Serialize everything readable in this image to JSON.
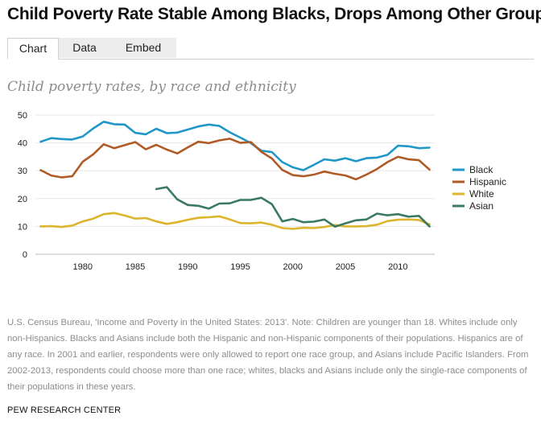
{
  "headline": "Child Poverty Rate Stable Among Blacks, Drops Among Other Groups",
  "tabs": [
    {
      "label": "Chart",
      "active": true
    },
    {
      "label": "Data",
      "active": false
    },
    {
      "label": "Embed",
      "active": false
    }
  ],
  "source_note": "U.S. Census Bureau, 'Income and Poverty in the United States: 2013'. Note: Children are younger than 18. Whites include only non-Hispanics. Blacks and Asians include both the Hispanic and non-Hispanic components of their populations. Hispanics are of any race. In 2001 and earlier, respondents were only allowed to report one race group, and Asians include Pacific Islanders. From 2002-2013, respondents could choose more than one race; whites, blacks and Asians include only the single-race components of their populations in these years.",
  "credit": "PEW RESEARCH CENTER",
  "chart_data": {
    "type": "line",
    "title": "Child poverty rates, by race and ethnicity",
    "xlabel": "",
    "ylabel": "",
    "xlim": [
      1975.5,
      2013.5
    ],
    "ylim": [
      0,
      50
    ],
    "x_ticks": [
      1980,
      1985,
      1990,
      1995,
      2000,
      2005,
      2010
    ],
    "y_ticks": [
      0,
      10,
      20,
      30,
      40,
      50
    ],
    "grid": true,
    "legend_position": "right",
    "series": [
      {
        "name": "Black",
        "color": "#1f97c7",
        "x": [
          1976,
          1977,
          1978,
          1979,
          1980,
          1981,
          1982,
          1983,
          1984,
          1985,
          1986,
          1987,
          1988,
          1989,
          1990,
          1991,
          1992,
          1993,
          1994,
          1995,
          1996,
          1997,
          1998,
          1999,
          2000,
          2001,
          2002,
          2003,
          2004,
          2005,
          2006,
          2007,
          2008,
          2009,
          2010,
          2011,
          2012,
          2013
        ],
        "values": [
          40.4,
          41.7,
          41.4,
          41.2,
          42.3,
          45.2,
          47.6,
          46.7,
          46.6,
          43.6,
          43.1,
          45.1,
          43.5,
          43.7,
          44.8,
          45.9,
          46.6,
          46.1,
          43.8,
          41.9,
          39.9,
          37.2,
          36.7,
          33.1,
          31.2,
          30.2,
          32.1,
          34.1,
          33.6,
          34.5,
          33.4,
          34.5,
          34.7,
          35.7,
          39.0,
          38.8,
          38.1,
          38.3
        ]
      },
      {
        "name": "Hispanic",
        "color": "#b05a25",
        "x": [
          1976,
          1977,
          1978,
          1979,
          1980,
          1981,
          1982,
          1983,
          1984,
          1985,
          1986,
          1987,
          1988,
          1989,
          1990,
          1991,
          1992,
          1993,
          1994,
          1995,
          1996,
          1997,
          1998,
          1999,
          2000,
          2001,
          2002,
          2003,
          2004,
          2005,
          2006,
          2007,
          2008,
          2009,
          2010,
          2011,
          2012,
          2013
        ],
        "values": [
          30.2,
          28.3,
          27.6,
          28.0,
          33.2,
          35.9,
          39.5,
          38.1,
          39.2,
          40.3,
          37.7,
          39.3,
          37.6,
          36.2,
          38.4,
          40.4,
          39.9,
          40.9,
          41.5,
          40.0,
          40.3,
          36.8,
          34.4,
          30.3,
          28.4,
          28.0,
          28.6,
          29.7,
          28.9,
          28.3,
          26.9,
          28.6,
          30.6,
          33.1,
          35.0,
          34.1,
          33.8,
          30.4
        ]
      },
      {
        "name": "White",
        "color": "#dcb52c",
        "x": [
          1976,
          1977,
          1978,
          1979,
          1980,
          1981,
          1982,
          1983,
          1984,
          1985,
          1986,
          1987,
          1988,
          1989,
          1990,
          1991,
          1992,
          1993,
          1994,
          1995,
          1996,
          1997,
          1998,
          1999,
          2000,
          2001,
          2002,
          2003,
          2004,
          2005,
          2006,
          2007,
          2008,
          2009,
          2010,
          2011,
          2012,
          2013
        ],
        "values": [
          10.0,
          10.1,
          9.8,
          10.3,
          11.8,
          12.8,
          14.4,
          14.8,
          13.9,
          12.8,
          13.0,
          11.8,
          10.9,
          11.5,
          12.4,
          13.1,
          13.3,
          13.6,
          12.5,
          11.2,
          11.1,
          11.4,
          10.6,
          9.4,
          9.1,
          9.5,
          9.4,
          9.8,
          10.5,
          10.0,
          10.0,
          10.1,
          10.6,
          11.9,
          12.4,
          12.5,
          12.3,
          10.7
        ]
      },
      {
        "name": "Asian",
        "color": "#3a7a60",
        "x": [
          1987,
          1988,
          1989,
          1990,
          1991,
          1992,
          1993,
          1994,
          1995,
          1996,
          1997,
          1998,
          1999,
          2000,
          2001,
          2002,
          2003,
          2004,
          2005,
          2006,
          2007,
          2008,
          2009,
          2010,
          2011,
          2012,
          2013
        ],
        "values": [
          23.4,
          24.1,
          19.7,
          17.7,
          17.4,
          16.4,
          18.2,
          18.3,
          19.5,
          19.5,
          20.3,
          18.0,
          11.8,
          12.7,
          11.5,
          11.7,
          12.5,
          9.9,
          11.1,
          12.2,
          12.5,
          14.6,
          14.0,
          14.4,
          13.5,
          13.8,
          10.0
        ]
      }
    ]
  }
}
